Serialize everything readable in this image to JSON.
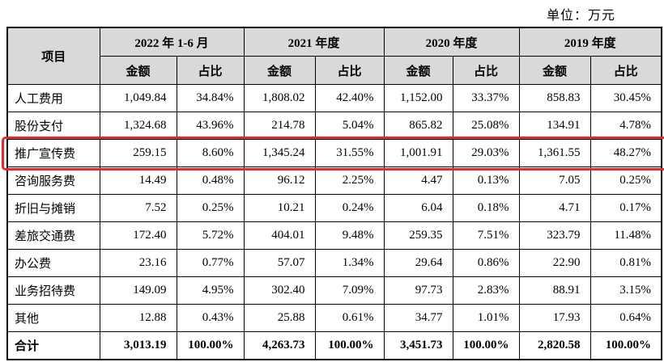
{
  "unit_label": "单位：万元",
  "table": {
    "item_header": "项目",
    "col_groups": [
      {
        "label": "2022 年 1-6 月"
      },
      {
        "label": "2021 年度"
      },
      {
        "label": "2020 年度"
      },
      {
        "label": "2019 年度"
      }
    ],
    "sub_headers": {
      "amount": "金额",
      "ratio": "占比"
    },
    "rows": [
      {
        "label": "人工费用",
        "highlight": false,
        "total": false,
        "values": [
          "1,049.84",
          "34.84%",
          "1,808.02",
          "42.40%",
          "1,152.00",
          "33.37%",
          "858.83",
          "30.45%"
        ]
      },
      {
        "label": "股份支付",
        "highlight": false,
        "total": false,
        "values": [
          "1,324.68",
          "43.96%",
          "214.78",
          "5.04%",
          "865.82",
          "25.08%",
          "134.91",
          "4.78%"
        ]
      },
      {
        "label": "推广宣传费",
        "highlight": true,
        "total": false,
        "values": [
          "259.15",
          "8.60%",
          "1,345.24",
          "31.55%",
          "1,001.91",
          "29.03%",
          "1,361.55",
          "48.27%"
        ]
      },
      {
        "label": "咨询服务费",
        "highlight": false,
        "total": false,
        "values": [
          "14.49",
          "0.48%",
          "96.12",
          "2.25%",
          "4.47",
          "0.13%",
          "7.05",
          "0.25%"
        ]
      },
      {
        "label": "折旧与摊销",
        "highlight": false,
        "total": false,
        "values": [
          "7.52",
          "0.25%",
          "10.21",
          "0.24%",
          "6.04",
          "0.18%",
          "4.71",
          "0.17%"
        ]
      },
      {
        "label": "差旅交通费",
        "highlight": false,
        "total": false,
        "values": [
          "172.40",
          "5.72%",
          "404.01",
          "9.48%",
          "259.35",
          "7.51%",
          "323.79",
          "11.48%"
        ]
      },
      {
        "label": "办公费",
        "highlight": false,
        "total": false,
        "values": [
          "23.16",
          "0.77%",
          "57.07",
          "1.34%",
          "29.64",
          "0.86%",
          "22.90",
          "0.81%"
        ]
      },
      {
        "label": "业务招待费",
        "highlight": false,
        "total": false,
        "values": [
          "149.09",
          "4.95%",
          "302.40",
          "7.09%",
          "97.73",
          "2.83%",
          "88.91",
          "3.15%"
        ]
      },
      {
        "label": "其他",
        "highlight": false,
        "total": false,
        "values": [
          "12.88",
          "0.43%",
          "25.88",
          "0.61%",
          "34.77",
          "1.01%",
          "17.93",
          "0.64%"
        ]
      },
      {
        "label": "合计",
        "highlight": false,
        "total": true,
        "values": [
          "3,013.19",
          "100.00%",
          "4,263.73",
          "100.00%",
          "3,451.73",
          "100.00%",
          "2,820.58",
          "100.00%"
        ]
      }
    ]
  },
  "colors": {
    "header_bg": "#d9d9d9",
    "highlight_border": "#ea262a",
    "table_border": "#000000"
  }
}
